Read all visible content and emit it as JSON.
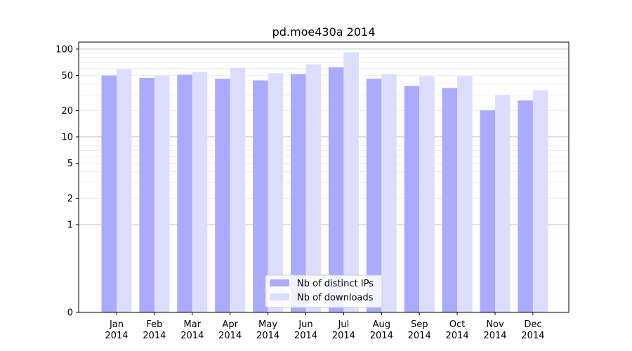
{
  "chart_data": {
    "type": "bar",
    "title": "pd.moe430a 2014",
    "categories": [
      "Jan\n2014",
      "Feb\n2014",
      "Mar\n2014",
      "Apr\n2014",
      "May\n2014",
      "Jun\n2014",
      "Jul\n2014",
      "Aug\n2014",
      "Sep\n2014",
      "Oct\n2014",
      "Nov\n2014",
      "Dec\n2014"
    ],
    "y_scale": "symlog",
    "y_ticks": [
      0,
      1,
      2,
      5,
      10,
      20,
      50,
      100
    ],
    "y_tick_labels": [
      "0",
      "1",
      "2",
      "5",
      "10",
      "20",
      "50",
      "100"
    ],
    "ylim": [
      0,
      120
    ],
    "grid": "horizontal",
    "legend_position": "bottom-center",
    "series": [
      {
        "name": "Nb of distinct IPs",
        "color": "#aaaaff",
        "values": [
          50,
          47,
          51,
          46,
          44,
          52,
          62,
          46,
          38,
          36,
          20,
          26
        ]
      },
      {
        "name": "Nb of downloads",
        "color": "#ddddff",
        "values": [
          59,
          50,
          55,
          61,
          53,
          67,
          92,
          52,
          49,
          49,
          30,
          34
        ]
      }
    ]
  }
}
